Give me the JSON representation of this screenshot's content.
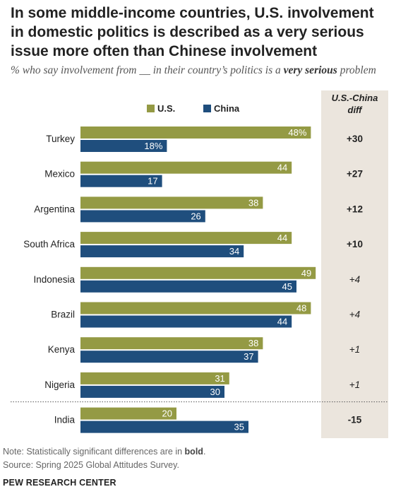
{
  "title": "In some middle-income countries, U.S. involvement in domestic politics is described as a very serious issue more often than Chinese involvement",
  "subtitle_pre": "% who say involvement from __ in their country’s politics is a ",
  "subtitle_bold": "very serious",
  "subtitle_post": " problem",
  "diff_header": [
    "U.S.-China",
    "diff"
  ],
  "note_prefix": "Note: Statistically significant differences are in ",
  "note_bold": "bold",
  "note_suffix": ".",
  "source": "Source: Spring 2025 Global Attitudes Survey.",
  "brand": "PEW RESEARCH CENTER",
  "colors": {
    "us": "#949a44",
    "china": "#1f4e7d",
    "diff_panel": "#ebe5dd"
  },
  "chart_data": {
    "type": "bar",
    "orientation": "horizontal",
    "categories": [
      "Turkey",
      "Mexico",
      "Argentina",
      "South Africa",
      "Indonesia",
      "Brazil",
      "Kenya",
      "Nigeria",
      "India"
    ],
    "series": [
      {
        "name": "U.S.",
        "values": [
          48,
          44,
          38,
          44,
          49,
          48,
          38,
          31,
          20
        ],
        "labels": [
          "48%",
          "44",
          "38",
          "44",
          "49",
          "48",
          "38",
          "31",
          "20"
        ]
      },
      {
        "name": "China",
        "values": [
          18,
          17,
          26,
          34,
          45,
          44,
          37,
          30,
          35
        ],
        "labels": [
          "18%",
          "17",
          "26",
          "34",
          "45",
          "44",
          "37",
          "30",
          "35"
        ]
      }
    ],
    "diff": [
      "+30",
      "+27",
      "+12",
      "+10",
      "+4",
      "+4",
      "+1",
      "+1",
      "-15"
    ],
    "diff_significant": [
      true,
      true,
      true,
      true,
      false,
      false,
      false,
      false,
      true
    ],
    "legend_position": "top",
    "grid": false
  }
}
